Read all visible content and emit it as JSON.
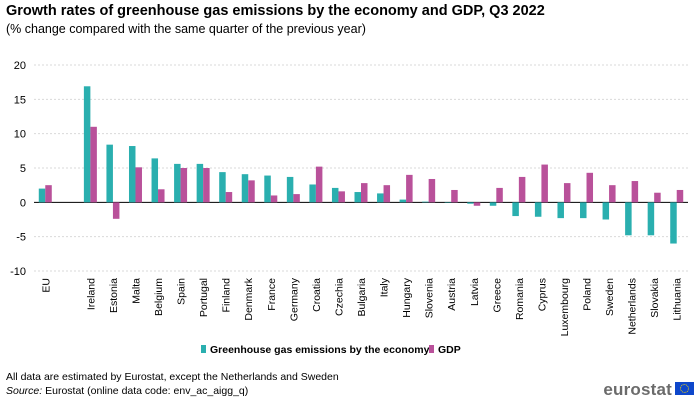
{
  "header": {
    "title": "Growth rates of greenhouse gas emissions by the economy and GDP, Q3 2022",
    "subtitle": "(% change compared with the same quarter of the previous year)"
  },
  "footer": {
    "note": "All data are estimated by Eurostat, except the Netherlands and Sweden",
    "source_label": "Source:",
    "source_text": " Eurostat (online data code: env_ac_aigg_q)",
    "logo": "eurostat"
  },
  "chart_data": {
    "type": "bar",
    "categories": [
      "EU",
      "",
      "Ireland",
      "Estonia",
      "Malta",
      "Belgium",
      "Spain",
      "Portugal",
      "Finland",
      "Denmark",
      "France",
      "Germany",
      "Croatia",
      "Czechia",
      "Bulgaria",
      "Italy",
      "Hungary",
      "Slovenia",
      "Austria",
      "Latvia",
      "Greece",
      "Romania",
      "Cyprus",
      "Luxembourg",
      "Poland",
      "Sweden",
      "Netherlands",
      "Slovakia",
      "Lithuania"
    ],
    "series": [
      {
        "name": "Greenhouse gas emissions by the economy",
        "color": "#2aafaf",
        "values": [
          2.0,
          null,
          16.9,
          8.4,
          8.2,
          6.4,
          5.6,
          5.6,
          4.4,
          4.1,
          3.9,
          3.7,
          2.6,
          2.1,
          1.5,
          1.3,
          0.4,
          0.1,
          0.0,
          -0.2,
          -0.5,
          -2.0,
          -2.1,
          -2.3,
          -2.3,
          -2.5,
          -4.8,
          -4.8,
          -6.0
        ]
      },
      {
        "name": "GDP",
        "color": "#b9519a",
        "values": [
          2.5,
          null,
          11.0,
          -2.4,
          5.1,
          1.9,
          5.0,
          5.0,
          1.5,
          3.2,
          1.0,
          1.2,
          5.2,
          1.6,
          2.8,
          2.5,
          4.0,
          3.4,
          1.8,
          -0.5,
          2.1,
          3.7,
          5.5,
          2.8,
          4.3,
          2.5,
          3.1,
          1.4,
          1.8
        ]
      }
    ],
    "xlabel": "",
    "ylabel": "",
    "ylim": [
      -10,
      20
    ],
    "yticks": [
      -10,
      -5,
      0,
      5,
      10,
      15,
      20
    ],
    "grid": true,
    "legend_position": "bottom-center"
  }
}
